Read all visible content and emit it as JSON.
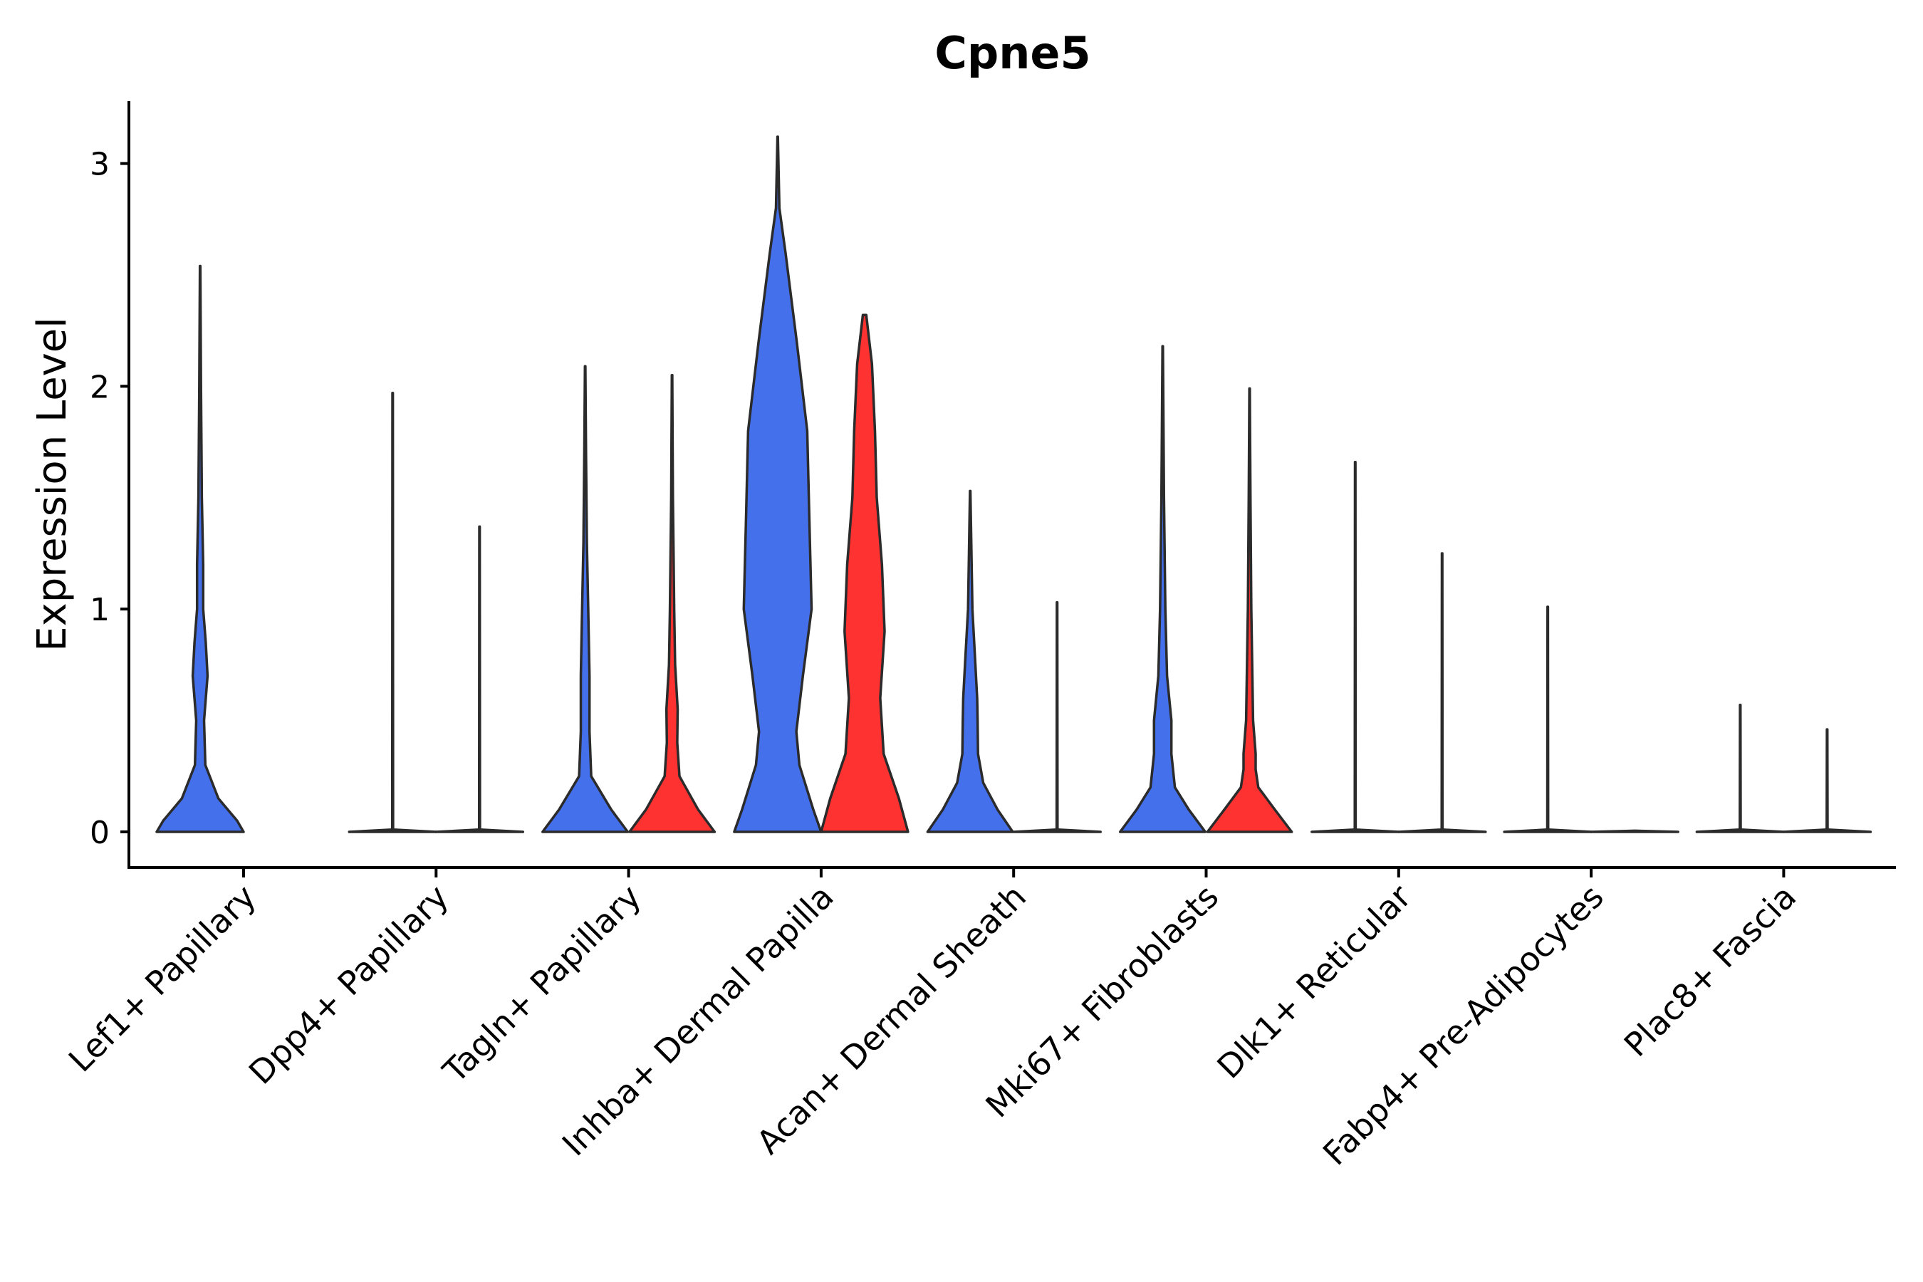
{
  "chart_data": {
    "type": "violin",
    "title": "Cpne5",
    "xlabel": "",
    "ylabel": "Expression Level",
    "ylim": [
      -0.16,
      3.28
    ],
    "yticks": [
      0,
      1,
      2,
      3
    ],
    "grid": false,
    "legend": "none",
    "colors": {
      "group_a": "#4470ec",
      "group_b": "#ff3232",
      "outline": "#2b2b2b"
    },
    "categories": [
      "Lef1+ Papillary",
      "Dpp4+ Papillary",
      "Tagln+ Papillary",
      "Inhba+ Dermal Papilla",
      "Acan+ Dermal Sheath",
      "Mki67+ Fibroblasts",
      "Dlk1+ Reticular",
      "Fabp4+ Pre-Adipocytes",
      "Plac8+ Fascia"
    ],
    "violins": [
      {
        "category": 0,
        "group": "a",
        "max": 2.54,
        "profile": [
          [
            0,
            1.0
          ],
          [
            0.05,
            0.85
          ],
          [
            0.15,
            0.42
          ],
          [
            0.3,
            0.12
          ],
          [
            0.5,
            0.09
          ],
          [
            0.7,
            0.17
          ],
          [
            0.85,
            0.13
          ],
          [
            1.0,
            0.07
          ],
          [
            1.2,
            0.07
          ],
          [
            1.5,
            0.04
          ],
          [
            2.0,
            0.02
          ],
          [
            2.54,
            0.005
          ]
        ]
      },
      {
        "category": 0,
        "group": "b",
        "max": 0,
        "profile": []
      },
      {
        "category": 1,
        "group": "a",
        "max": 1.97,
        "profile": [
          [
            0,
            1.0
          ],
          [
            0.01,
            0.01
          ],
          [
            1.97,
            0.005
          ]
        ]
      },
      {
        "category": 1,
        "group": "b",
        "max": 1.37,
        "profile": [
          [
            0,
            1.0
          ],
          [
            0.01,
            0.01
          ],
          [
            1.37,
            0.005
          ]
        ]
      },
      {
        "category": 2,
        "group": "a",
        "max": 2.09,
        "profile": [
          [
            0,
            0.98
          ],
          [
            0.1,
            0.6
          ],
          [
            0.25,
            0.14
          ],
          [
            0.45,
            0.1
          ],
          [
            0.7,
            0.1
          ],
          [
            1.0,
            0.07
          ],
          [
            1.3,
            0.04
          ],
          [
            1.7,
            0.02
          ],
          [
            2.09,
            0.005
          ]
        ]
      },
      {
        "category": 2,
        "group": "b",
        "max": 2.05,
        "profile": [
          [
            0,
            0.98
          ],
          [
            0.1,
            0.6
          ],
          [
            0.25,
            0.17
          ],
          [
            0.4,
            0.12
          ],
          [
            0.55,
            0.13
          ],
          [
            0.75,
            0.07
          ],
          [
            1.0,
            0.05
          ],
          [
            1.5,
            0.02
          ],
          [
            2.05,
            0.005
          ]
        ]
      },
      {
        "category": 3,
        "group": "a",
        "max": 3.12,
        "profile": [
          [
            0,
            1.0
          ],
          [
            0.1,
            0.82
          ],
          [
            0.3,
            0.5
          ],
          [
            0.45,
            0.43
          ],
          [
            0.7,
            0.58
          ],
          [
            1.0,
            0.78
          ],
          [
            1.4,
            0.73
          ],
          [
            1.8,
            0.68
          ],
          [
            2.2,
            0.44
          ],
          [
            2.6,
            0.18
          ],
          [
            2.8,
            0.04
          ],
          [
            3.12,
            0.005
          ]
        ]
      },
      {
        "category": 3,
        "group": "b",
        "max": 2.32,
        "profile": [
          [
            0,
            1.0
          ],
          [
            0.15,
            0.79
          ],
          [
            0.35,
            0.44
          ],
          [
            0.6,
            0.36
          ],
          [
            0.9,
            0.46
          ],
          [
            1.2,
            0.4
          ],
          [
            1.5,
            0.28
          ],
          [
            1.8,
            0.24
          ],
          [
            2.1,
            0.17
          ],
          [
            2.32,
            0.04
          ]
        ]
      },
      {
        "category": 4,
        "group": "a",
        "max": 1.53,
        "profile": [
          [
            0,
            0.98
          ],
          [
            0.1,
            0.63
          ],
          [
            0.22,
            0.3
          ],
          [
            0.35,
            0.18
          ],
          [
            0.5,
            0.17
          ],
          [
            0.6,
            0.16
          ],
          [
            0.75,
            0.12
          ],
          [
            1.0,
            0.05
          ],
          [
            1.53,
            0.005
          ]
        ]
      },
      {
        "category": 4,
        "group": "b",
        "max": 1.03,
        "profile": [
          [
            0,
            1.0
          ],
          [
            0.01,
            0.01
          ],
          [
            1.03,
            0.005
          ]
        ]
      },
      {
        "category": 5,
        "group": "a",
        "max": 2.18,
        "profile": [
          [
            0,
            0.98
          ],
          [
            0.1,
            0.6
          ],
          [
            0.2,
            0.28
          ],
          [
            0.35,
            0.2
          ],
          [
            0.5,
            0.2
          ],
          [
            0.7,
            0.1
          ],
          [
            1.0,
            0.06
          ],
          [
            1.5,
            0.03
          ],
          [
            2.18,
            0.005
          ]
        ]
      },
      {
        "category": 5,
        "group": "b",
        "max": 1.99,
        "profile": [
          [
            0,
            0.97
          ],
          [
            0.1,
            0.58
          ],
          [
            0.2,
            0.2
          ],
          [
            0.28,
            0.14
          ],
          [
            0.35,
            0.14
          ],
          [
            0.5,
            0.08
          ],
          [
            1.0,
            0.04
          ],
          [
            1.5,
            0.02
          ],
          [
            1.99,
            0.005
          ]
        ]
      },
      {
        "category": 6,
        "group": "a",
        "max": 1.66,
        "profile": [
          [
            0,
            1.0
          ],
          [
            0.01,
            0.01
          ],
          [
            1.66,
            0.005
          ]
        ]
      },
      {
        "category": 6,
        "group": "b",
        "max": 1.25,
        "profile": [
          [
            0,
            1.0
          ],
          [
            0.01,
            0.01
          ],
          [
            1.25,
            0.005
          ]
        ]
      },
      {
        "category": 7,
        "group": "a",
        "max": 1.01,
        "profile": [
          [
            0,
            1.0
          ],
          [
            0.01,
            0.01
          ],
          [
            1.01,
            0.005
          ]
        ]
      },
      {
        "category": 7,
        "group": "b",
        "max": 0,
        "profile": [
          [
            0,
            1.0
          ],
          [
            0.005,
            0.0
          ]
        ]
      },
      {
        "category": 8,
        "group": "a",
        "max": 0.57,
        "profile": [
          [
            0,
            1.0
          ],
          [
            0.01,
            0.01
          ],
          [
            0.57,
            0.005
          ]
        ]
      },
      {
        "category": 8,
        "group": "b",
        "max": 0.46,
        "profile": [
          [
            0,
            1.0
          ],
          [
            0.01,
            0.01
          ],
          [
            0.46,
            0.005
          ]
        ]
      }
    ]
  }
}
